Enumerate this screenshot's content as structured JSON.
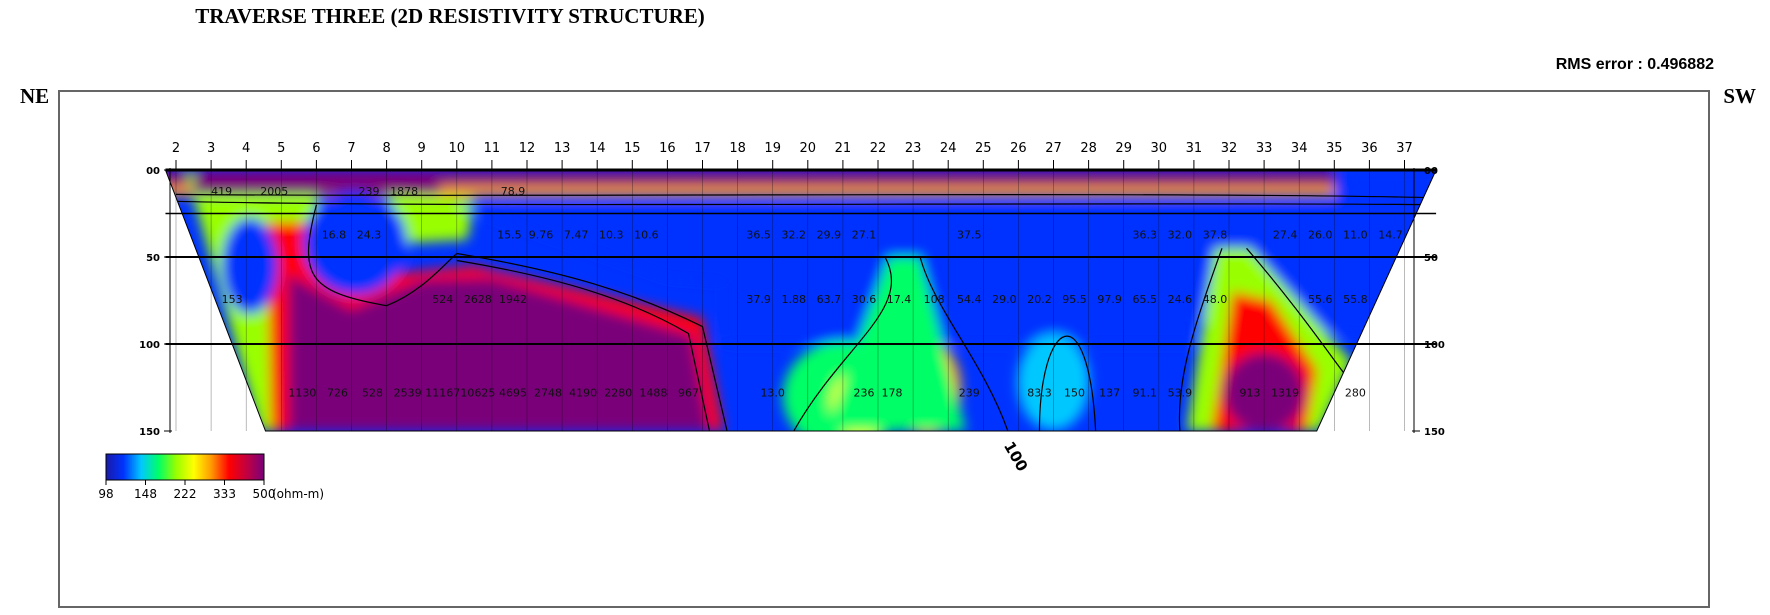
{
  "header": {
    "title": "TRAVERSE THREE (2D RESISTIVITY STRUCTURE)",
    "rms": "RMS error : 0.496882",
    "left_dir": "NE",
    "right_dir": "SW"
  },
  "chart_data": {
    "type": "heatmap",
    "title": "TRAVERSE THREE (2D RESISTIVITY STRUCTURE)",
    "x_ticks": [
      2,
      3,
      4,
      5,
      6,
      7,
      8,
      9,
      10,
      11,
      12,
      13,
      14,
      15,
      16,
      17,
      18,
      19,
      20,
      21,
      22,
      23,
      24,
      25,
      26,
      27,
      28,
      29,
      30,
      31,
      32,
      33,
      34,
      35,
      36,
      37
    ],
    "depth_ticks": [
      "00",
      "50",
      "100",
      "150"
    ],
    "depth_values": [
      0,
      50,
      100,
      150
    ],
    "colorbar": {
      "stops": [
        "#1a1aa8",
        "#0033ff",
        "#00c8ff",
        "#00ff66",
        "#99ff00",
        "#ffff00",
        "#ff9900",
        "#ff0000",
        "#c20040",
        "#7a007a"
      ],
      "labels": [
        "98",
        "148",
        "222",
        "333",
        "500"
      ],
      "unit": "(ohm-m)"
    },
    "contour_label": "100",
    "data_labels": [
      {
        "x": 3.3,
        "d": 12,
        "t": "419"
      },
      {
        "x": 4.8,
        "d": 12,
        "t": "2005"
      },
      {
        "x": 7.5,
        "d": 12,
        "t": "239"
      },
      {
        "x": 8.5,
        "d": 12,
        "t": "1878"
      },
      {
        "x": 11.6,
        "d": 12,
        "t": "78.9"
      },
      {
        "x": 6.5,
        "d": 37,
        "t": "16.8"
      },
      {
        "x": 7.5,
        "d": 37,
        "t": "24.3"
      },
      {
        "x": 11.5,
        "d": 37,
        "t": "15.5"
      },
      {
        "x": 12.4,
        "d": 37,
        "t": "9.76"
      },
      {
        "x": 13.4,
        "d": 37,
        "t": "7.47"
      },
      {
        "x": 14.4,
        "d": 37,
        "t": "10.3"
      },
      {
        "x": 15.4,
        "d": 37,
        "t": "10.6"
      },
      {
        "x": 18.6,
        "d": 37,
        "t": "36.5"
      },
      {
        "x": 19.6,
        "d": 37,
        "t": "32.2"
      },
      {
        "x": 20.6,
        "d": 37,
        "t": "29.9"
      },
      {
        "x": 21.6,
        "d": 37,
        "t": "27.1"
      },
      {
        "x": 24.6,
        "d": 37,
        "t": "37.5"
      },
      {
        "x": 29.6,
        "d": 37,
        "t": "36.3"
      },
      {
        "x": 30.6,
        "d": 37,
        "t": "32.0"
      },
      {
        "x": 31.6,
        "d": 37,
        "t": "37.8"
      },
      {
        "x": 33.6,
        "d": 37,
        "t": "27.4"
      },
      {
        "x": 34.6,
        "d": 37,
        "t": "26.0"
      },
      {
        "x": 35.6,
        "d": 37,
        "t": "11.0"
      },
      {
        "x": 36.6,
        "d": 37,
        "t": "14.7"
      },
      {
        "x": 3.6,
        "d": 74,
        "t": "153"
      },
      {
        "x": 9.6,
        "d": 74,
        "t": "524"
      },
      {
        "x": 10.6,
        "d": 74,
        "t": "2628"
      },
      {
        "x": 11.6,
        "d": 74,
        "t": "1942"
      },
      {
        "x": 18.6,
        "d": 74,
        "t": "37.9"
      },
      {
        "x": 19.6,
        "d": 74,
        "t": "1.88"
      },
      {
        "x": 20.6,
        "d": 74,
        "t": "63.7"
      },
      {
        "x": 21.6,
        "d": 74,
        "t": "30.6"
      },
      {
        "x": 22.6,
        "d": 74,
        "t": "17.4"
      },
      {
        "x": 23.6,
        "d": 74,
        "t": "108"
      },
      {
        "x": 24.6,
        "d": 74,
        "t": "54.4"
      },
      {
        "x": 25.6,
        "d": 74,
        "t": "29.0"
      },
      {
        "x": 26.6,
        "d": 74,
        "t": "20.2"
      },
      {
        "x": 27.6,
        "d": 74,
        "t": "95.5"
      },
      {
        "x": 28.6,
        "d": 74,
        "t": "97.9"
      },
      {
        "x": 29.6,
        "d": 74,
        "t": "65.5"
      },
      {
        "x": 30.6,
        "d": 74,
        "t": "24.6"
      },
      {
        "x": 31.6,
        "d": 74,
        "t": "48.0"
      },
      {
        "x": 34.6,
        "d": 74,
        "t": "55.6"
      },
      {
        "x": 35.6,
        "d": 74,
        "t": "55.8"
      },
      {
        "x": 5.6,
        "d": 128,
        "t": "1130"
      },
      {
        "x": 6.6,
        "d": 128,
        "t": "726"
      },
      {
        "x": 7.6,
        "d": 128,
        "t": "528"
      },
      {
        "x": 8.6,
        "d": 128,
        "t": "2539"
      },
      {
        "x": 9.6,
        "d": 128,
        "t": "11167"
      },
      {
        "x": 10.6,
        "d": 128,
        "t": "10625"
      },
      {
        "x": 11.6,
        "d": 128,
        "t": "4695"
      },
      {
        "x": 12.6,
        "d": 128,
        "t": "2748"
      },
      {
        "x": 13.6,
        "d": 128,
        "t": "4190"
      },
      {
        "x": 14.6,
        "d": 128,
        "t": "2280"
      },
      {
        "x": 15.6,
        "d": 128,
        "t": "1488"
      },
      {
        "x": 16.6,
        "d": 128,
        "t": "967"
      },
      {
        "x": 19.0,
        "d": 128,
        "t": "13.0"
      },
      {
        "x": 21.6,
        "d": 128,
        "t": "236"
      },
      {
        "x": 22.4,
        "d": 128,
        "t": "178"
      },
      {
        "x": 24.6,
        "d": 128,
        "t": "239"
      },
      {
        "x": 26.6,
        "d": 128,
        "t": "83.3"
      },
      {
        "x": 27.6,
        "d": 128,
        "t": "150"
      },
      {
        "x": 28.6,
        "d": 128,
        "t": "137"
      },
      {
        "x": 29.6,
        "d": 128,
        "t": "91.1"
      },
      {
        "x": 30.6,
        "d": 128,
        "t": "53.9"
      },
      {
        "x": 32.6,
        "d": 128,
        "t": "913"
      },
      {
        "x": 33.6,
        "d": 128,
        "t": "1319"
      },
      {
        "x": 35.6,
        "d": 128,
        "t": "280"
      }
    ]
  }
}
